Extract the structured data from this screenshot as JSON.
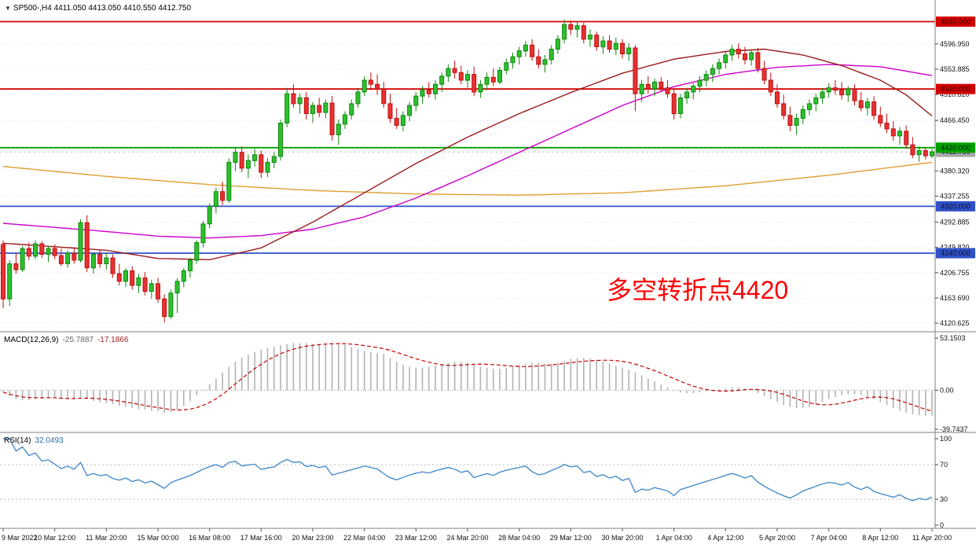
{
  "header": {
    "text": "SP500-,H4 4411.050 4413.050 4410.550 4412.750"
  },
  "annotation": {
    "text": "多空转折点4420",
    "color": "#ff0000"
  },
  "panels": {
    "macd": {
      "name": "MACD(12,26,9)",
      "main_value": "-25.7887",
      "signal_value": "-17.1866",
      "axis": [
        "53.1503",
        "0.00",
        "-39.7437"
      ]
    },
    "rsi": {
      "name": "RSI(14)",
      "value": "32.0493",
      "axis": [
        "100",
        "70",
        "30",
        "0"
      ]
    }
  },
  "price_axis": {
    "ticks": [
      {
        "label": "4596.950",
        "price": 4596.95
      },
      {
        "label": "4553.885",
        "price": 4553.885
      },
      {
        "label": "4510.820",
        "price": 4510.82
      },
      {
        "label": "4466.450",
        "price": 4466.45
      },
      {
        "label": "4380.320",
        "price": 4380.32
      },
      {
        "label": "4337.255",
        "price": 4337.255
      },
      {
        "label": "4292.885",
        "price": 4292.885
      },
      {
        "label": "4249.820",
        "price": 4249.82
      },
      {
        "label": "4206.755",
        "price": 4206.755
      },
      {
        "label": "4163.690",
        "price": 4163.69
      },
      {
        "label": "4120.625",
        "price": 4120.625
      }
    ],
    "badges": [
      {
        "label": "4635.000",
        "price": 4635.0,
        "color": "#d40000"
      },
      {
        "label": "4520.000",
        "price": 4520.0,
        "color": "#d40000"
      },
      {
        "label": "4420.000",
        "price": 4420.0,
        "color": "#00a000"
      },
      {
        "label": "4320.000",
        "price": 4320.0,
        "color": "#3050c8"
      },
      {
        "label": "4240.000",
        "price": 4240.0,
        "color": "#3050c8"
      }
    ],
    "current": {
      "label": "4412.750",
      "price": 4412.75,
      "color": "#a8a8a8"
    }
  },
  "time_axis": {
    "labels": [
      {
        "text": "9 Mar 2022",
        "i": 0
      },
      {
        "text": "10 Mar 12:00",
        "i": 8
      },
      {
        "text": "11 Mar 20:00",
        "i": 16
      },
      {
        "text": "15 Mar 00:00",
        "i": 24
      },
      {
        "text": "16 Mar 08:00",
        "i": 32
      },
      {
        "text": "17 Mar 16:00",
        "i": 40
      },
      {
        "text": "20 Mar 23:00",
        "i": 48
      },
      {
        "text": "22 Mar 04:00",
        "i": 56
      },
      {
        "text": "23 Mar 12:00",
        "i": 64
      },
      {
        "text": "24 Mar 20:00",
        "i": 72
      },
      {
        "text": "28 Mar 04:00",
        "i": 80
      },
      {
        "text": "29 Mar 12:00",
        "i": 88
      },
      {
        "text": "30 Mar 20:00",
        "i": 96
      },
      {
        "text": "1 Apr 04:00",
        "i": 104
      },
      {
        "text": "4 Apr 12:00",
        "i": 112
      },
      {
        "text": "5 Apr 20:00",
        "i": 120
      },
      {
        "text": "7 Apr 04:00",
        "i": 128
      },
      {
        "text": "8 Apr 12:00",
        "i": 136
      },
      {
        "text": "11 Apr 20:00",
        "i": 144
      }
    ]
  },
  "chart_data": {
    "type": "candlestick",
    "symbol": "SP500-",
    "timeframe": "H4",
    "visible_range": {
      "max": 4645,
      "min": 4110
    },
    "macd_scale": {
      "max": 53.1503,
      "min": -39.7437
    },
    "rsi_scale": {
      "max": 100,
      "min": 0,
      "levels": [
        70,
        30
      ]
    },
    "hlines": [
      {
        "price": 4635.0,
        "color": "#d40000"
      },
      {
        "price": 4520.0,
        "color": "#d40000"
      },
      {
        "price": 4420.0,
        "color": "#00a000"
      },
      {
        "price": 4320.0,
        "color": "#3050c8"
      },
      {
        "price": 4240.0,
        "color": "#3050c8"
      }
    ],
    "style": {
      "up_fill": "#2fbf2f",
      "up_stroke": "#0c8a0c",
      "down_fill": "#e63232",
      "down_stroke": "#bf0f0f",
      "macd_bar": "#b3b3b3",
      "macd_signal": "#c00000",
      "rsi_line": "#3d85c8",
      "grid": "#dedede",
      "separator": "#7f7f7f"
    },
    "mas": [
      {
        "name": "ma-long-orange",
        "color": "#dfa032",
        "points": [
          [
            0,
            4388
          ],
          [
            16,
            4371
          ],
          [
            32,
            4357
          ],
          [
            48,
            4347
          ],
          [
            64,
            4341
          ],
          [
            80,
            4339
          ],
          [
            96,
            4343
          ],
          [
            112,
            4355
          ],
          [
            128,
            4373
          ],
          [
            144,
            4395
          ]
        ]
      },
      {
        "name": "ma-slow-magenta",
        "color": "#cc00cc",
        "points": [
          [
            0,
            4291
          ],
          [
            8,
            4284
          ],
          [
            16,
            4277
          ],
          [
            24,
            4269
          ],
          [
            32,
            4266
          ],
          [
            40,
            4270
          ],
          [
            48,
            4281
          ],
          [
            56,
            4302
          ],
          [
            64,
            4334
          ],
          [
            72,
            4372
          ],
          [
            80,
            4412
          ],
          [
            88,
            4452
          ],
          [
            96,
            4492
          ],
          [
            104,
            4524
          ],
          [
            112,
            4545
          ],
          [
            120,
            4557
          ],
          [
            128,
            4562
          ],
          [
            136,
            4558
          ],
          [
            144,
            4543
          ]
        ]
      },
      {
        "name": "ma-fast-darkred",
        "color": "#9b1c1c",
        "points": [
          [
            0,
            4257
          ],
          [
            8,
            4251
          ],
          [
            16,
            4245
          ],
          [
            24,
            4231
          ],
          [
            32,
            4229
          ],
          [
            40,
            4249
          ],
          [
            48,
            4293
          ],
          [
            56,
            4343
          ],
          [
            64,
            4393
          ],
          [
            72,
            4438
          ],
          [
            80,
            4478
          ],
          [
            88,
            4514
          ],
          [
            96,
            4547
          ],
          [
            104,
            4571
          ],
          [
            112,
            4584
          ],
          [
            118,
            4588
          ],
          [
            124,
            4578
          ],
          [
            130,
            4560
          ],
          [
            136,
            4535
          ],
          [
            140,
            4510
          ],
          [
            144,
            4474
          ]
        ]
      }
    ],
    "candles": [
      [
        4255,
        4262,
        4146,
        4162
      ],
      [
        4162,
        4228,
        4150,
        4222
      ],
      [
        4222,
        4240,
        4205,
        4212
      ],
      [
        4212,
        4252,
        4208,
        4248
      ],
      [
        4248,
        4258,
        4228,
        4235
      ],
      [
        4235,
        4262,
        4230,
        4256
      ],
      [
        4256,
        4260,
        4232,
        4238
      ],
      [
        4238,
        4252,
        4225,
        4248
      ],
      [
        4248,
        4255,
        4230,
        4236
      ],
      [
        4236,
        4248,
        4218,
        4222
      ],
      [
        4222,
        4245,
        4215,
        4240
      ],
      [
        4240,
        4250,
        4222,
        4228
      ],
      [
        4228,
        4298,
        4224,
        4292
      ],
      [
        4292,
        4305,
        4208,
        4215
      ],
      [
        4215,
        4242,
        4205,
        4238
      ],
      [
        4238,
        4245,
        4215,
        4222
      ],
      [
        4222,
        4240,
        4212,
        4232
      ],
      [
        4232,
        4238,
        4198,
        4205
      ],
      [
        4205,
        4222,
        4185,
        4192
      ],
      [
        4192,
        4215,
        4182,
        4210
      ],
      [
        4210,
        4218,
        4178,
        4185
      ],
      [
        4185,
        4205,
        4172,
        4198
      ],
      [
        4198,
        4208,
        4168,
        4175
      ],
      [
        4175,
        4195,
        4162,
        4188
      ],
      [
        4188,
        4198,
        4155,
        4162
      ],
      [
        4162,
        4170,
        4122,
        4132
      ],
      [
        4132,
        4178,
        4128,
        4172
      ],
      [
        4172,
        4198,
        4138,
        4192
      ],
      [
        4192,
        4215,
        4182,
        4210
      ],
      [
        4210,
        4232,
        4198,
        4228
      ],
      [
        4228,
        4262,
        4222,
        4258
      ],
      [
        4258,
        4295,
        4250,
        4290
      ],
      [
        4290,
        4325,
        4282,
        4320
      ],
      [
        4320,
        4352,
        4308,
        4345
      ],
      [
        4345,
        4362,
        4322,
        4330
      ],
      [
        4330,
        4402,
        4326,
        4395
      ],
      [
        4395,
        4420,
        4380,
        4412
      ],
      [
        4412,
        4422,
        4378,
        4385
      ],
      [
        4385,
        4408,
        4368,
        4398
      ],
      [
        4398,
        4418,
        4388,
        4408
      ],
      [
        4408,
        4415,
        4368,
        4378
      ],
      [
        4378,
        4402,
        4370,
        4395
      ],
      [
        4395,
        4412,
        4385,
        4405
      ],
      [
        4405,
        4468,
        4398,
        4462
      ],
      [
        4462,
        4522,
        4455,
        4512
      ],
      [
        4512,
        4528,
        4488,
        4495
      ],
      [
        4495,
        4512,
        4478,
        4505
      ],
      [
        4505,
        4515,
        4468,
        4478
      ],
      [
        4478,
        4498,
        4462,
        4492
      ],
      [
        4492,
        4505,
        4472,
        4480
      ],
      [
        4480,
        4502,
        4470,
        4496
      ],
      [
        4496,
        4508,
        4432,
        4442
      ],
      [
        4442,
        4468,
        4425,
        4460
      ],
      [
        4460,
        4482,
        4452,
        4476
      ],
      [
        4476,
        4502,
        4468,
        4495
      ],
      [
        4495,
        4522,
        4488,
        4515
      ],
      [
        4515,
        4542,
        4508,
        4535
      ],
      [
        4535,
        4548,
        4518,
        4528
      ],
      [
        4528,
        4545,
        4510,
        4520
      ],
      [
        4520,
        4532,
        4488,
        4495
      ],
      [
        4495,
        4512,
        4462,
        4470
      ],
      [
        4470,
        4488,
        4452,
        4458
      ],
      [
        4458,
        4482,
        4448,
        4475
      ],
      [
        4475,
        4498,
        4465,
        4492
      ],
      [
        4492,
        4515,
        4482,
        4508
      ],
      [
        4508,
        4525,
        4495,
        4518
      ],
      [
        4518,
        4532,
        4505,
        4512
      ],
      [
        4512,
        4535,
        4502,
        4528
      ],
      [
        4528,
        4548,
        4515,
        4542
      ],
      [
        4542,
        4562,
        4532,
        4555
      ],
      [
        4555,
        4568,
        4538,
        4548
      ],
      [
        4548,
        4560,
        4528,
        4535
      ],
      [
        4535,
        4552,
        4522,
        4545
      ],
      [
        4545,
        4558,
        4508,
        4515
      ],
      [
        4515,
        4535,
        4505,
        4528
      ],
      [
        4528,
        4548,
        4518,
        4540
      ],
      [
        4540,
        4555,
        4525,
        4532
      ],
      [
        4532,
        4558,
        4528,
        4552
      ],
      [
        4552,
        4572,
        4545,
        4565
      ],
      [
        4565,
        4582,
        4555,
        4575
      ],
      [
        4575,
        4592,
        4562,
        4585
      ],
      [
        4585,
        4602,
        4575,
        4595
      ],
      [
        4595,
        4605,
        4568,
        4575
      ],
      [
        4575,
        4588,
        4555,
        4562
      ],
      [
        4562,
        4578,
        4548,
        4570
      ],
      [
        4570,
        4595,
        4562,
        4588
      ],
      [
        4588,
        4612,
        4580,
        4605
      ],
      [
        4605,
        4638,
        4598,
        4630
      ],
      [
        4630,
        4637,
        4612,
        4622
      ],
      [
        4622,
        4635,
        4608,
        4628
      ],
      [
        4628,
        4633,
        4598,
        4605
      ],
      [
        4605,
        4622,
        4592,
        4612
      ],
      [
        4612,
        4618,
        4585,
        4592
      ],
      [
        4592,
        4610,
        4580,
        4602
      ],
      [
        4602,
        4612,
        4582,
        4588
      ],
      [
        4588,
        4608,
        4578,
        4598
      ],
      [
        4598,
        4605,
        4572,
        4580
      ],
      [
        4580,
        4598,
        4568,
        4590
      ],
      [
        4590,
        4595,
        4482,
        4512
      ],
      [
        4512,
        4535,
        4498,
        4528
      ],
      [
        4528,
        4542,
        4512,
        4520
      ],
      [
        4520,
        4538,
        4508,
        4532
      ],
      [
        4532,
        4540,
        4515,
        4522
      ],
      [
        4522,
        4535,
        4505,
        4512
      ],
      [
        4512,
        4520,
        4468,
        4478
      ],
      [
        4478,
        4512,
        4470,
        4505
      ],
      [
        4505,
        4522,
        4495,
        4515
      ],
      [
        4515,
        4530,
        4502,
        4525
      ],
      [
        4525,
        4542,
        4515,
        4535
      ],
      [
        4535,
        4552,
        4525,
        4545
      ],
      [
        4545,
        4562,
        4532,
        4555
      ],
      [
        4555,
        4572,
        4545,
        4565
      ],
      [
        4565,
        4585,
        4555,
        4578
      ],
      [
        4578,
        4595,
        4568,
        4588
      ],
      [
        4588,
        4598,
        4572,
        4580
      ],
      [
        4580,
        4592,
        4562,
        4570
      ],
      [
        4570,
        4588,
        4560,
        4582
      ],
      [
        4582,
        4590,
        4548,
        4555
      ],
      [
        4555,
        4568,
        4528,
        4535
      ],
      [
        4535,
        4548,
        4508,
        4515
      ],
      [
        4515,
        4528,
        4488,
        4495
      ],
      [
        4495,
        4510,
        4468,
        4475
      ],
      [
        4475,
        4490,
        4448,
        4458
      ],
      [
        4458,
        4478,
        4442,
        4470
      ],
      [
        4470,
        4492,
        4460,
        4485
      ],
      [
        4485,
        4502,
        4475,
        4495
      ],
      [
        4495,
        4512,
        4482,
        4505
      ],
      [
        4505,
        4522,
        4495,
        4515
      ],
      [
        4515,
        4530,
        4505,
        4522
      ],
      [
        4522,
        4535,
        4510,
        4518
      ],
      [
        4518,
        4532,
        4502,
        4510
      ],
      [
        4510,
        4525,
        4498,
        4520
      ],
      [
        4520,
        4528,
        4492,
        4500
      ],
      [
        4500,
        4515,
        4482,
        4488
      ],
      [
        4488,
        4505,
        4475,
        4498
      ],
      [
        4498,
        4508,
        4468,
        4475
      ],
      [
        4475,
        4490,
        4455,
        4462
      ],
      [
        4462,
        4478,
        4445,
        4452
      ],
      [
        4452,
        4465,
        4432,
        4440
      ],
      [
        4440,
        4455,
        4425,
        4448
      ],
      [
        4448,
        4458,
        4418,
        4425
      ],
      [
        4425,
        4438,
        4402,
        4408
      ],
      [
        4408,
        4422,
        4396,
        4415
      ],
      [
        4415,
        4420,
        4400,
        4406
      ],
      [
        4406,
        4418,
        4402,
        4413
      ]
    ],
    "macd": [
      -2,
      -6,
      -9,
      -10,
      -10,
      -9,
      -8,
      -7,
      -7,
      -8,
      -8,
      -9,
      -7,
      -9,
      -11,
      -12,
      -13,
      -14,
      -16,
      -17,
      -18,
      -19,
      -20,
      -21,
      -21,
      -23,
      -22,
      -20,
      -16,
      -11,
      -5,
      1,
      6,
      12,
      18,
      24,
      29,
      33,
      36,
      39,
      41,
      43,
      44,
      46,
      47,
      48,
      48,
      48,
      47,
      47,
      48,
      48,
      47,
      46,
      44,
      42,
      40,
      39,
      38,
      37,
      33,
      29,
      26,
      24,
      23,
      23,
      24,
      25,
      26,
      28,
      29,
      29,
      28,
      26,
      24,
      23,
      22,
      22,
      23,
      24,
      26,
      27,
      28,
      28,
      27,
      27,
      28,
      30,
      32,
      33,
      33,
      32,
      31,
      29,
      27,
      25,
      23,
      21,
      18,
      15,
      12,
      9,
      6,
      3,
      0,
      -2,
      -3,
      -3,
      -2,
      -1,
      0,
      1,
      2,
      3,
      3,
      2,
      0,
      -3,
      -6,
      -9,
      -12,
      -15,
      -17,
      -18,
      -18,
      -17,
      -15,
      -12,
      -9,
      -7,
      -5,
      -4,
      -4,
      -5,
      -7,
      -9,
      -12,
      -15,
      -18,
      -21,
      -23,
      -24.5,
      -25.5,
      -26,
      -25.79
    ]
  }
}
